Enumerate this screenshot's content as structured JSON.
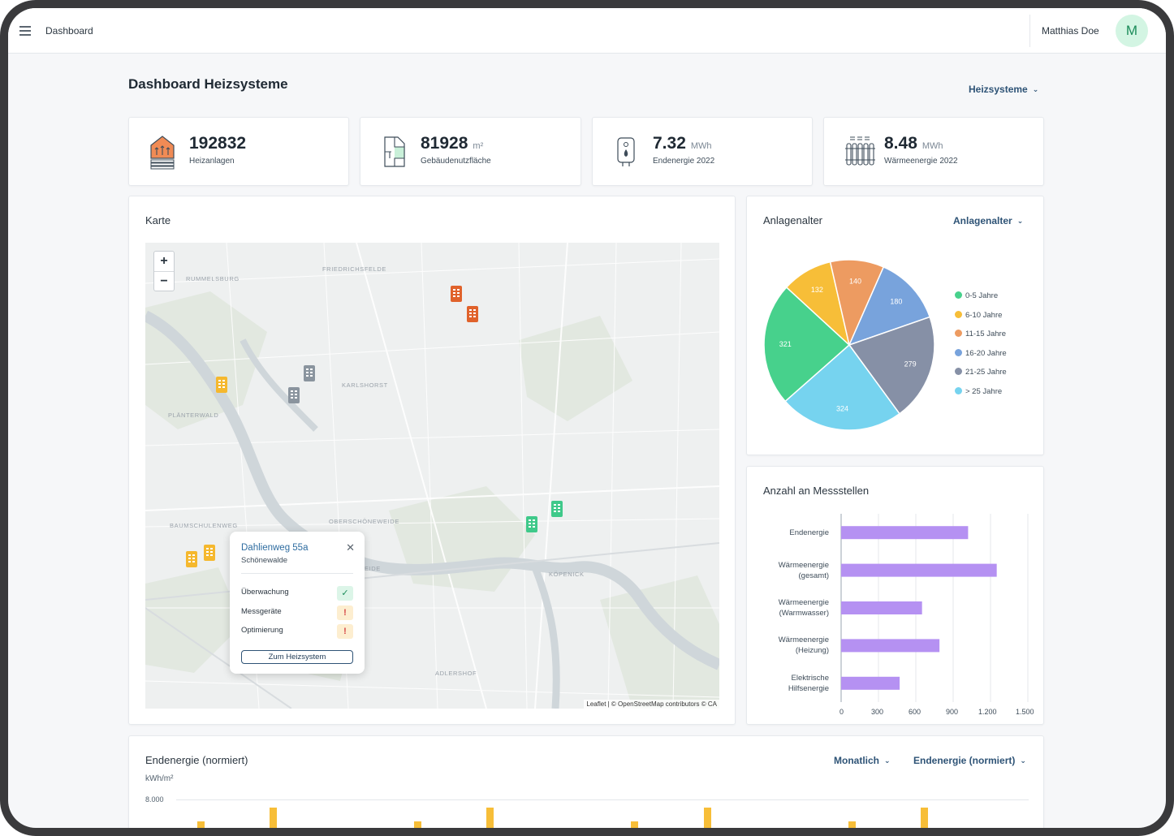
{
  "topbar": {
    "title": "Dashboard",
    "user_name": "Matthias Doe",
    "avatar_initial": "M"
  },
  "page": {
    "title": "Dashboard Heizsysteme",
    "filter_dropdown": "Heizsysteme"
  },
  "kpis": [
    {
      "value": "192832",
      "unit": "",
      "label": "Heizanlagen",
      "icon": "house-heating-icon"
    },
    {
      "value": "81928",
      "unit": "m²",
      "label": "Gebäudenutzfläche",
      "icon": "floor-plan-icon"
    },
    {
      "value": "7.32",
      "unit": "MWh",
      "label": "Endenergie 2022",
      "icon": "boiler-icon"
    },
    {
      "value": "8.48",
      "unit": "MWh",
      "label": "Wärmeenergie 2022",
      "icon": "radiator-icon"
    }
  ],
  "map_card": {
    "title": "Karte",
    "zoom_in": "+",
    "zoom_out": "−",
    "attribution": "Leaflet | © OpenStreetMap contributors © CA",
    "labels": [
      "FRIEDRICHSFELDE",
      "RUMMELSBURG",
      "KARLSHORST",
      "PLÄNTERWALD",
      "OBERSCHÖNEWEIDE",
      "BAUMSCHULENWEG",
      "KÖPENICK",
      "ADLERSHOF",
      "EIDE"
    ],
    "popup": {
      "title": "Dahlienweg 55a",
      "subtitle": "Schönewalde",
      "close": "✕",
      "rows": [
        {
          "label": "Überwachung",
          "status": "ok",
          "symbol": "✓"
        },
        {
          "label": "Messgeräte",
          "status": "warn",
          "symbol": "!"
        },
        {
          "label": "Optimierung",
          "status": "warn",
          "symbol": "!"
        }
      ],
      "button": "Zum Heizsystem"
    },
    "colors": {
      "orange": "#e0622b",
      "gray": "#8a949e",
      "yellow": "#f5b82e",
      "green": "#3fc98a"
    }
  },
  "age_card": {
    "title": "Anlagenalter",
    "dropdown": "Anlagenalter"
  },
  "measure_card": {
    "title": "Anzahl an Messstellen"
  },
  "energy_card": {
    "title": "Endenergie (normiert)",
    "dropdown_period": "Monatlich",
    "dropdown_metric": "Endenergie (normiert)",
    "unit": "kWh/m²",
    "ytick_top": "8.000"
  },
  "chart_data": [
    {
      "type": "pie",
      "title": "Anlagenalter",
      "categories": [
        "0-5 Jahre",
        "6-10 Jahre",
        "11-15 Jahre",
        "16-20 Jahre",
        "21-25 Jahre",
        "> 25 Jahre"
      ],
      "values": [
        321,
        132,
        140,
        180,
        279,
        324
      ],
      "colors": [
        "#47d18c",
        "#f7be38",
        "#ed9b61",
        "#78a3dc",
        "#8690a6",
        "#76d3ef"
      ],
      "legend": "right"
    },
    {
      "type": "bar",
      "orientation": "horizontal",
      "title": "Anzahl an Messstellen",
      "categories": [
        "Endenergie",
        "Wärmeenergie\n(gesamt)",
        "Wärmeenergie\n(Warmwasser)",
        "Wärmeenergie\n(Heizung)",
        "Elektrische\nHilfsenergie"
      ],
      "values": [
        1020,
        1250,
        650,
        790,
        470
      ],
      "xlim": [
        0,
        1500
      ],
      "xticks": [
        "0",
        "300",
        "600",
        "900",
        "1.200",
        "1.500"
      ],
      "color": "#b591f2"
    }
  ]
}
